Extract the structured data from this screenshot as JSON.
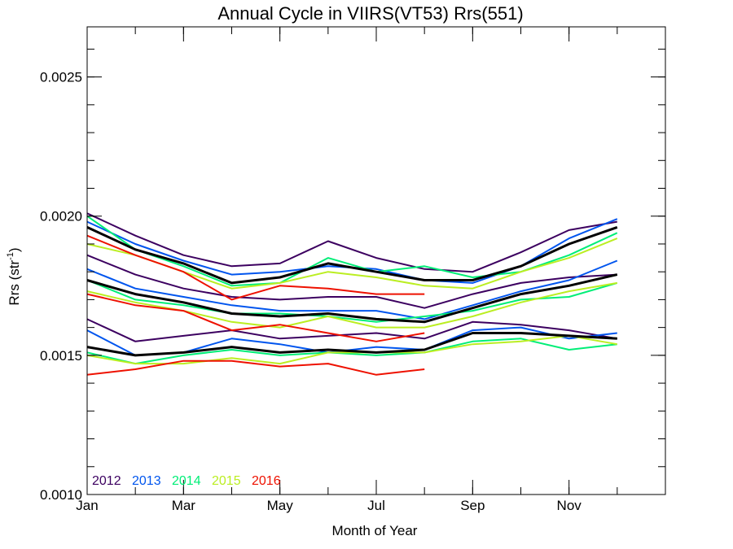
{
  "chart_data": {
    "type": "line",
    "title": "Annual Cycle in VIIRS(VT53) Rrs(551)",
    "xlabel": "Month of Year",
    "ylabel_base": "Rrs (str",
    "ylabel_sup": "-1",
    "ylabel_end": ")",
    "xlim": [
      1,
      13
    ],
    "ylim": [
      0.001,
      0.00268
    ],
    "x_ticks": [
      {
        "value": 1,
        "label": "Jan"
      },
      {
        "value": 3,
        "label": "Mar"
      },
      {
        "value": 5,
        "label": "May"
      },
      {
        "value": 7,
        "label": "Jul"
      },
      {
        "value": 9,
        "label": "Sep"
      },
      {
        "value": 11,
        "label": "Nov"
      }
    ],
    "y_major_ticks": [
      {
        "value": 0.001,
        "label": "0.0010"
      },
      {
        "value": 0.0015,
        "label": "0.0015"
      },
      {
        "value": 0.002,
        "label": "0.0020"
      },
      {
        "value": 0.0025,
        "label": "0.0025"
      }
    ],
    "y_minor_step": 0.0001,
    "grid": false,
    "legend_position": "bottom-left",
    "legend": [
      {
        "label": "2012",
        "color": "#3c0060"
      },
      {
        "label": "2013",
        "color": "#0055ee"
      },
      {
        "label": "2014",
        "color": "#00ee77"
      },
      {
        "label": "2015",
        "color": "#bbee22"
      },
      {
        "label": "2016",
        "color": "#ee1100"
      }
    ],
    "series": [
      {
        "color": "#3c0060",
        "x": [
          1,
          2,
          3,
          4,
          5,
          6,
          7,
          8,
          9,
          10,
          11,
          12
        ],
        "values": [
          0.00201,
          0.00193,
          0.00186,
          0.00182,
          0.00183,
          0.00191,
          0.00185,
          0.00181,
          0.0018,
          0.00187,
          0.00195,
          0.00198
        ]
      },
      {
        "color": "#3c0060",
        "x": [
          1,
          2,
          3,
          4,
          5,
          6,
          7,
          8,
          9,
          10,
          11,
          12
        ],
        "values": [
          0.00186,
          0.00179,
          0.00174,
          0.00171,
          0.0017,
          0.00171,
          0.00171,
          0.00167,
          0.00172,
          0.00176,
          0.00178,
          0.00179
        ]
      },
      {
        "color": "#3c0060",
        "x": [
          1,
          2,
          3,
          4,
          5,
          6,
          7,
          8,
          9,
          10,
          11,
          12
        ],
        "values": [
          0.00163,
          0.00155,
          0.00157,
          0.00159,
          0.00156,
          0.00157,
          0.00158,
          0.00156,
          0.00162,
          0.00161,
          0.00159,
          0.00156
        ]
      },
      {
        "color": "#0055ee",
        "x": [
          1,
          2,
          3,
          4,
          5,
          6,
          7,
          8,
          9,
          10,
          11,
          12
        ],
        "values": [
          0.00198,
          0.0019,
          0.00184,
          0.00179,
          0.0018,
          0.00182,
          0.00181,
          0.00177,
          0.00176,
          0.00182,
          0.00192,
          0.00199
        ]
      },
      {
        "color": "#0055ee",
        "x": [
          1,
          2,
          3,
          4,
          5,
          6,
          7,
          8,
          9,
          10,
          11,
          12
        ],
        "values": [
          0.00181,
          0.00174,
          0.00171,
          0.00168,
          0.00166,
          0.00166,
          0.00166,
          0.00163,
          0.00168,
          0.00173,
          0.00177,
          0.00184
        ]
      },
      {
        "color": "#0055ee",
        "x": [
          1,
          2,
          3,
          4,
          5,
          6,
          7,
          8,
          9,
          10,
          11,
          12
        ],
        "values": [
          0.00159,
          0.0015,
          0.00151,
          0.00156,
          0.00154,
          0.00151,
          0.00153,
          0.00152,
          0.00159,
          0.0016,
          0.00156,
          0.00158
        ]
      },
      {
        "color": "#00ee77",
        "x": [
          1,
          2,
          3,
          4,
          5,
          6,
          7,
          8,
          9,
          10,
          11,
          12
        ],
        "values": [
          0.002,
          0.00188,
          0.00182,
          0.00175,
          0.00176,
          0.00185,
          0.0018,
          0.00182,
          0.00178,
          0.0018,
          0.00186,
          0.00194
        ]
      },
      {
        "color": "#00ee77",
        "x": [
          1,
          2,
          3,
          4,
          5,
          6,
          7,
          8,
          9,
          10,
          11,
          12
        ],
        "values": [
          0.00177,
          0.0017,
          0.00168,
          0.00165,
          0.00165,
          0.00164,
          0.00162,
          0.00164,
          0.00166,
          0.0017,
          0.00171,
          0.00176
        ]
      },
      {
        "color": "#00ee77",
        "x": [
          1,
          2,
          3,
          4,
          5,
          6,
          7,
          8,
          9,
          10,
          11,
          12
        ],
        "values": [
          0.00151,
          0.00147,
          0.0015,
          0.00152,
          0.0015,
          0.00151,
          0.0015,
          0.00151,
          0.00155,
          0.00156,
          0.00152,
          0.00154
        ]
      },
      {
        "color": "#bbee22",
        "x": [
          1,
          2,
          3,
          4,
          5,
          6,
          7,
          8,
          9,
          10,
          11,
          12
        ],
        "values": [
          0.0019,
          0.00186,
          0.0018,
          0.00174,
          0.00176,
          0.0018,
          0.00178,
          0.00175,
          0.00174,
          0.0018,
          0.00185,
          0.00192
        ]
      },
      {
        "color": "#bbee22",
        "x": [
          1,
          2,
          3,
          4,
          5,
          6,
          7,
          8,
          9,
          10,
          11,
          12
        ],
        "values": [
          0.00173,
          0.00169,
          0.00166,
          0.00162,
          0.0016,
          0.00164,
          0.0016,
          0.0016,
          0.00164,
          0.00169,
          0.00173,
          0.00176
        ]
      },
      {
        "color": "#bbee22",
        "x": [
          1,
          2,
          3,
          4,
          5,
          6,
          7,
          8,
          9,
          10,
          11,
          12
        ],
        "values": [
          0.0015,
          0.00147,
          0.00147,
          0.00149,
          0.00147,
          0.00151,
          0.00151,
          0.00151,
          0.00154,
          0.00155,
          0.00157,
          0.00154
        ]
      },
      {
        "color": "#ee1100",
        "x": [
          1,
          2,
          3,
          4,
          5,
          6,
          7,
          8
        ],
        "values": [
          0.00193,
          0.00186,
          0.0018,
          0.0017,
          0.00175,
          0.00174,
          0.00172,
          0.00172
        ]
      },
      {
        "color": "#ee1100",
        "x": [
          1,
          2,
          3,
          4,
          5,
          6,
          7,
          8
        ],
        "values": [
          0.00172,
          0.00168,
          0.00166,
          0.00159,
          0.00161,
          0.00158,
          0.00155,
          0.00158
        ]
      },
      {
        "color": "#ee1100",
        "x": [
          1,
          2,
          3,
          4,
          5,
          6,
          7,
          8
        ],
        "values": [
          0.00143,
          0.00145,
          0.00148,
          0.00148,
          0.00146,
          0.00147,
          0.00143,
          0.00145
        ]
      },
      {
        "color": "#000000",
        "x": [
          1,
          2,
          3,
          4,
          5,
          6,
          7,
          8,
          9,
          10,
          11,
          12
        ],
        "values": [
          0.00196,
          0.00188,
          0.00183,
          0.00176,
          0.00178,
          0.00183,
          0.0018,
          0.00177,
          0.00177,
          0.00182,
          0.0019,
          0.00196
        ]
      },
      {
        "color": "#000000",
        "x": [
          1,
          2,
          3,
          4,
          5,
          6,
          7,
          8,
          9,
          10,
          11,
          12
        ],
        "values": [
          0.00177,
          0.00172,
          0.00169,
          0.00165,
          0.00164,
          0.00165,
          0.00163,
          0.00162,
          0.00167,
          0.00172,
          0.00175,
          0.00179
        ]
      },
      {
        "color": "#000000",
        "x": [
          1,
          2,
          3,
          4,
          5,
          6,
          7,
          8,
          9,
          10,
          11,
          12
        ],
        "values": [
          0.00153,
          0.0015,
          0.00151,
          0.00153,
          0.00151,
          0.00152,
          0.00151,
          0.00152,
          0.00158,
          0.00158,
          0.00157,
          0.00156
        ]
      }
    ]
  }
}
